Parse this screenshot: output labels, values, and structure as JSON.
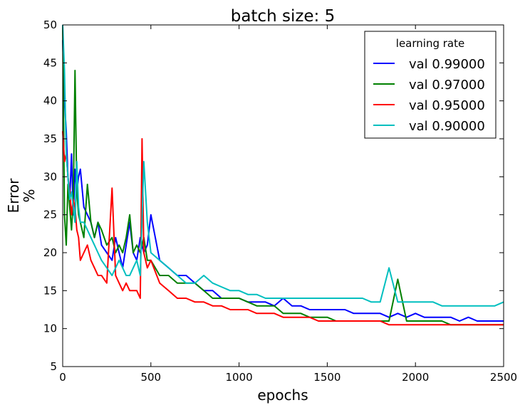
{
  "chart_data": {
    "type": "line",
    "title": "batch size: 5",
    "xlabel": "epochs",
    "ylabel": "Error\n%",
    "xlim": [
      0,
      2500
    ],
    "ylim": [
      5,
      50
    ],
    "xticks": [
      0,
      500,
      1000,
      1500,
      2000,
      2500
    ],
    "yticks": [
      5,
      10,
      15,
      20,
      25,
      30,
      35,
      40,
      45,
      50
    ],
    "grid": false,
    "legend": {
      "title": "learning rate",
      "placement": "top-right"
    },
    "series": [
      {
        "name": "val 0.99000",
        "color": "#0000ff",
        "x": [
          0,
          10,
          20,
          30,
          40,
          50,
          60,
          70,
          80,
          90,
          100,
          120,
          140,
          160,
          180,
          200,
          220,
          250,
          280,
          300,
          320,
          340,
          360,
          380,
          400,
          420,
          440,
          460,
          480,
          500,
          550,
          600,
          650,
          700,
          750,
          800,
          850,
          900,
          950,
          1000,
          1050,
          1100,
          1150,
          1200,
          1250,
          1300,
          1350,
          1400,
          1450,
          1500,
          1550,
          1600,
          1650,
          1700,
          1750,
          1800,
          1850,
          1900,
          1950,
          2000,
          2050,
          2100,
          2150,
          2200,
          2250,
          2300,
          2350,
          2400,
          2450,
          2500
        ],
        "values": [
          48,
          40,
          36,
          30,
          27,
          33,
          25,
          31,
          28,
          30,
          31,
          26,
          25,
          24,
          22,
          24,
          21,
          20,
          19,
          22,
          20,
          18,
          21,
          24,
          20,
          19,
          22,
          20,
          21,
          25,
          19,
          18,
          17,
          17,
          16,
          15,
          15,
          14,
          14,
          14,
          13.5,
          13.5,
          13.5,
          13,
          14,
          13,
          13,
          12.5,
          12.5,
          12.5,
          12.5,
          12.5,
          12,
          12,
          12,
          12,
          11.5,
          12,
          11.5,
          12,
          11.5,
          11.5,
          11.5,
          11.5,
          11,
          11.5,
          11,
          11,
          11,
          11
        ]
      },
      {
        "name": "val 0.97000",
        "color": "#008000",
        "x": [
          0,
          10,
          20,
          30,
          40,
          50,
          60,
          70,
          80,
          90,
          100,
          120,
          140,
          160,
          180,
          200,
          220,
          250,
          280,
          300,
          320,
          340,
          360,
          380,
          400,
          420,
          440,
          460,
          480,
          500,
          550,
          600,
          650,
          700,
          750,
          800,
          850,
          900,
          950,
          1000,
          1050,
          1100,
          1150,
          1200,
          1250,
          1300,
          1350,
          1400,
          1450,
          1500,
          1550,
          1600,
          1650,
          1700,
          1750,
          1800,
          1850,
          1900,
          1950,
          2000,
          2050,
          2100,
          2150,
          2200,
          2250,
          2300,
          2350,
          2400,
          2450,
          2500
        ],
        "values": [
          50,
          25,
          21,
          29,
          26,
          23,
          27,
          44,
          28,
          25,
          24,
          22,
          29,
          24,
          22,
          24,
          23,
          21,
          22,
          20,
          21,
          20,
          22,
          25,
          20,
          21,
          20,
          22,
          19,
          19,
          17,
          17,
          16,
          16,
          16,
          15,
          14,
          14,
          14,
          14,
          13.5,
          13,
          13,
          13,
          12,
          12,
          12,
          11.5,
          11.5,
          11.5,
          11,
          11,
          11,
          11,
          11,
          11,
          11,
          16.5,
          11,
          11,
          11,
          11,
          11,
          10.5,
          10.5,
          10.5,
          10.5,
          10.5,
          10.5,
          10.5
        ]
      },
      {
        "name": "val 0.95000",
        "color": "#ff0000",
        "x": [
          0,
          10,
          20,
          30,
          40,
          50,
          60,
          70,
          80,
          90,
          100,
          120,
          140,
          160,
          180,
          200,
          220,
          250,
          280,
          300,
          320,
          340,
          360,
          380,
          400,
          420,
          440,
          450,
          460,
          480,
          500,
          550,
          600,
          650,
          700,
          750,
          800,
          850,
          900,
          950,
          1000,
          1050,
          1100,
          1150,
          1200,
          1250,
          1300,
          1350,
          1400,
          1450,
          1500,
          1550,
          1600,
          1650,
          1700,
          1750,
          1800,
          1850,
          1900,
          1950,
          2000,
          2050,
          2100,
          2150,
          2200,
          2250,
          2300,
          2350,
          2400,
          2450,
          2500
        ],
        "values": [
          36,
          32,
          33,
          30,
          28,
          25,
          27,
          26,
          23,
          22,
          19,
          20,
          21,
          19,
          18,
          17,
          17,
          16,
          28.5,
          17,
          16,
          15,
          16,
          15,
          15,
          15,
          14,
          35,
          20,
          18,
          19,
          16,
          15,
          14,
          14,
          13.5,
          13.5,
          13,
          13,
          12.5,
          12.5,
          12.5,
          12,
          12,
          12,
          11.5,
          11.5,
          11.5,
          11.5,
          11,
          11,
          11,
          11,
          11,
          11,
          11,
          11,
          10.5,
          10.5,
          10.5,
          10.5,
          10.5,
          10.5,
          10.5,
          10.5,
          10.5,
          10.5,
          10.5,
          10.5,
          10.5,
          10.5
        ]
      },
      {
        "name": "val 0.90000",
        "color": "#00bfbf",
        "x": [
          0,
          10,
          20,
          30,
          40,
          50,
          60,
          70,
          80,
          90,
          100,
          120,
          140,
          160,
          180,
          200,
          220,
          250,
          280,
          300,
          320,
          340,
          360,
          380,
          400,
          420,
          440,
          460,
          480,
          500,
          550,
          600,
          650,
          700,
          750,
          800,
          850,
          900,
          950,
          1000,
          1050,
          1100,
          1150,
          1200,
          1250,
          1300,
          1350,
          1400,
          1450,
          1500,
          1550,
          1600,
          1650,
          1700,
          1750,
          1800,
          1850,
          1900,
          1950,
          2000,
          2050,
          2100,
          2150,
          2200,
          2250,
          2300,
          2350,
          2400,
          2450,
          2500
        ],
        "values": [
          50,
          44,
          33,
          30,
          27,
          28,
          26,
          24,
          32,
          26,
          24,
          24,
          23,
          22,
          21,
          20,
          19,
          18,
          17,
          18,
          19,
          18,
          17,
          17,
          18,
          19,
          17,
          32,
          24,
          20,
          19,
          18,
          17,
          16,
          16,
          17,
          16,
          15.5,
          15,
          15,
          14.5,
          14.5,
          14,
          14,
          14,
          14,
          14,
          14,
          14,
          14,
          14,
          14,
          14,
          14,
          13.5,
          13.5,
          18,
          13.5,
          13.5,
          13.5,
          13.5,
          13.5,
          13,
          13,
          13,
          13,
          13,
          13,
          13,
          13.5
        ]
      }
    ]
  }
}
